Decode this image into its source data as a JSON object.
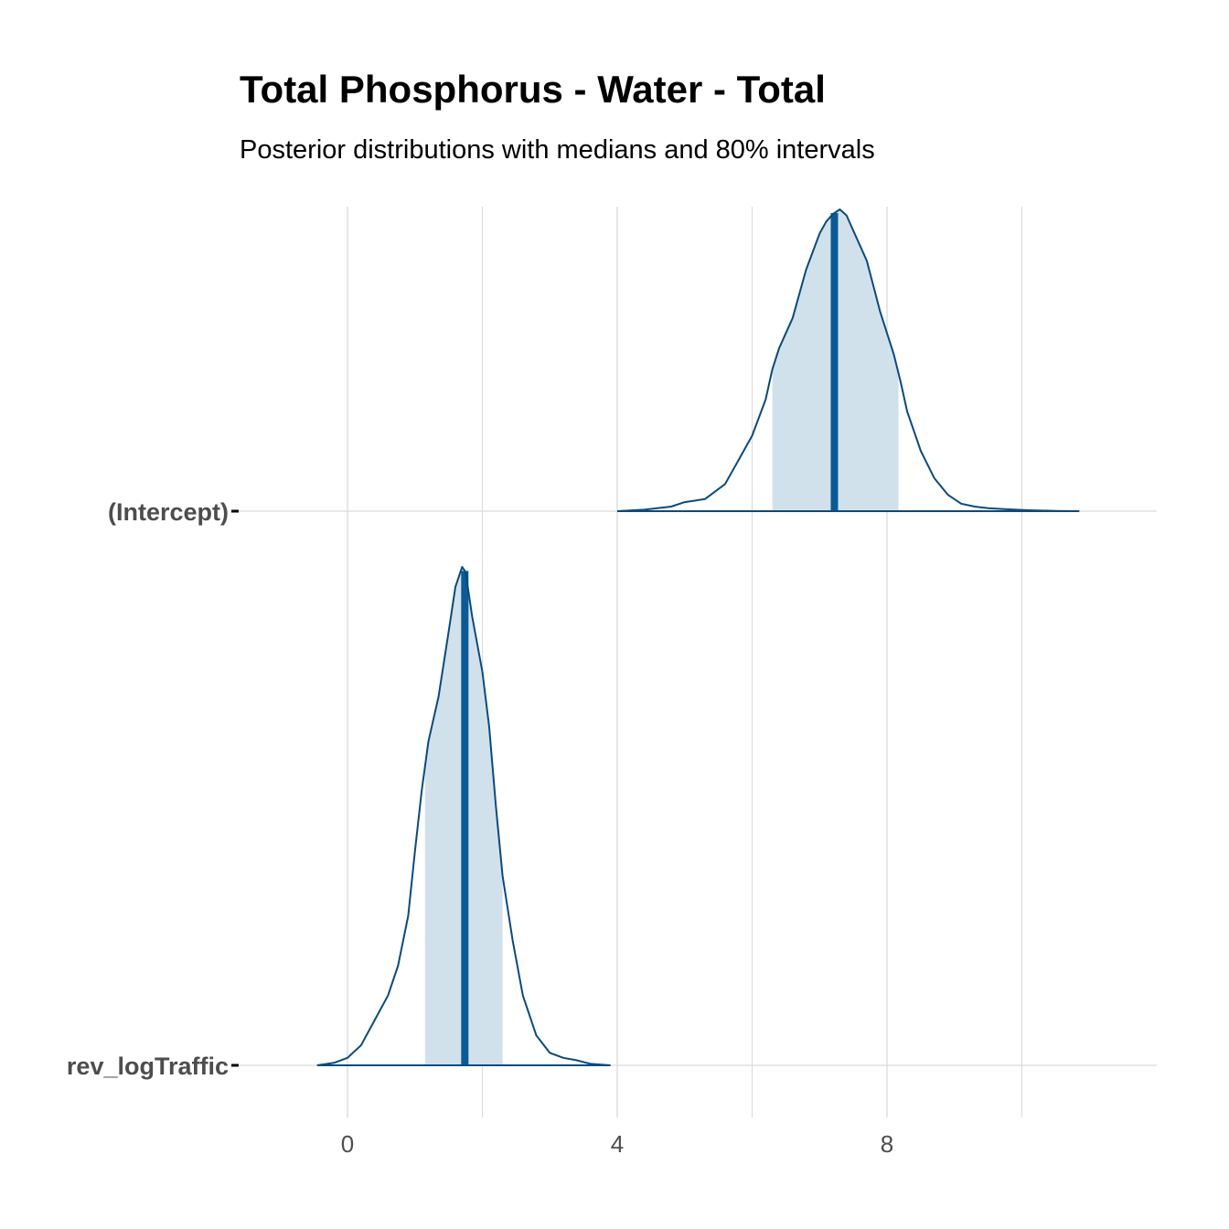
{
  "chart_data": {
    "type": "area",
    "title": "Total Phosphorus - Water - Total",
    "subtitle": "Posterior distributions with medians and 80% intervals",
    "xlabel": "",
    "ylabel": "",
    "xlim": [
      -1.8,
      12
    ],
    "x_ticks": [
      0,
      4,
      8
    ],
    "x_tick_labels": [
      "0",
      "4",
      "8"
    ],
    "x_minor_gridlines": [
      2,
      6,
      10
    ],
    "grid": true,
    "legend": "none",
    "colors": {
      "outline": "#0b4a7c",
      "interval_fill": "#d1e1ec",
      "median_line": "#0b5a96",
      "grid": "#d9d9d9"
    },
    "categories": [
      "(Intercept)",
      "rev_logTraffic"
    ],
    "series": [
      {
        "name": "(Intercept)",
        "median": 7.22,
        "interval_80": [
          6.3,
          8.17
        ],
        "density": {
          "x": [
            4.0,
            4.4,
            4.8,
            5.0,
            5.3,
            5.6,
            5.8,
            6.0,
            6.2,
            6.3,
            6.4,
            6.6,
            6.8,
            7.0,
            7.1,
            7.2,
            7.3,
            7.4,
            7.5,
            7.7,
            7.9,
            8.1,
            8.2,
            8.3,
            8.5,
            8.7,
            8.9,
            9.1,
            9.3,
            9.5,
            9.8,
            10.1,
            10.5,
            10.85
          ],
          "y": [
            0.0,
            0.005,
            0.015,
            0.03,
            0.04,
            0.09,
            0.17,
            0.25,
            0.37,
            0.47,
            0.54,
            0.64,
            0.8,
            0.92,
            0.96,
            0.985,
            1.0,
            0.98,
            0.93,
            0.83,
            0.66,
            0.52,
            0.43,
            0.33,
            0.2,
            0.11,
            0.055,
            0.025,
            0.015,
            0.01,
            0.006,
            0.003,
            0.001,
            0.0
          ]
        }
      },
      {
        "name": "rev_logTraffic",
        "median": 1.74,
        "interval_80": [
          1.15,
          2.3
        ],
        "density": {
          "x": [
            -0.45,
            -0.2,
            0.0,
            0.2,
            0.4,
            0.6,
            0.75,
            0.9,
            1.0,
            1.1,
            1.2,
            1.35,
            1.5,
            1.6,
            1.7,
            1.75,
            1.85,
            2.0,
            2.1,
            2.2,
            2.3,
            2.45,
            2.6,
            2.8,
            3.0,
            3.2,
            3.4,
            3.6,
            3.9
          ],
          "y": [
            0.0,
            0.005,
            0.015,
            0.04,
            0.09,
            0.14,
            0.2,
            0.3,
            0.43,
            0.55,
            0.65,
            0.74,
            0.87,
            0.96,
            1.0,
            0.99,
            0.9,
            0.79,
            0.68,
            0.52,
            0.38,
            0.25,
            0.14,
            0.06,
            0.025,
            0.015,
            0.01,
            0.003,
            0.0
          ]
        }
      }
    ]
  }
}
